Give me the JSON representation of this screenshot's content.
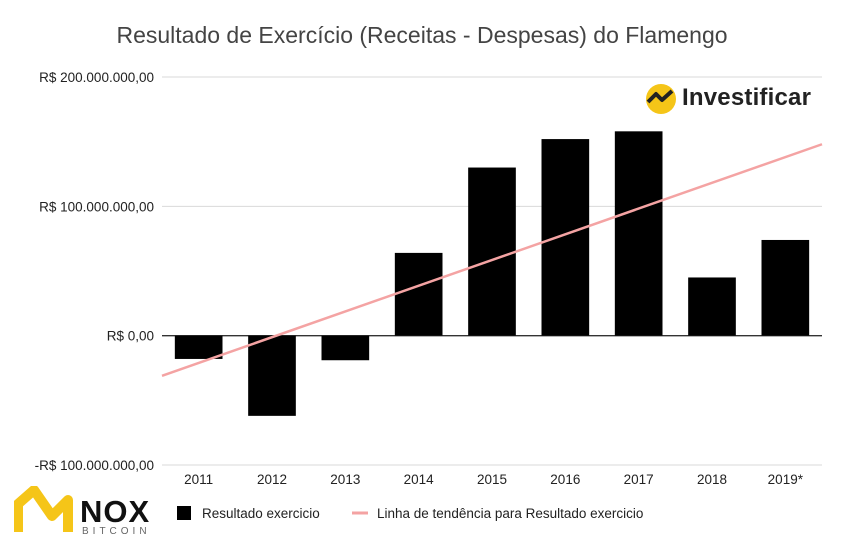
{
  "title": "Resultado de Exercício (Receitas - Despesas) do Flamengo",
  "chart_data": {
    "type": "bar",
    "title": "Resultado de Exercício (Receitas - Despesas) do Flamengo",
    "categories": [
      "2011",
      "2012",
      "2013",
      "2014",
      "2015",
      "2016",
      "2017",
      "2018",
      "2019*"
    ],
    "series": [
      {
        "name": "Resultado exercicio",
        "color": "#000000",
        "values": [
          -18000000,
          -62000000,
          -19000000,
          64000000,
          130000000,
          152000000,
          158000000,
          45000000,
          74000000
        ]
      }
    ],
    "trendline": {
      "name": "Linha de tendência para Resultado exercicio",
      "color": "#f4a3a3",
      "start_value": -31000000,
      "end_value": 148000000
    },
    "ylim": [
      -100000000,
      200000000
    ],
    "yticks": [
      200000000,
      100000000,
      0,
      -100000000
    ],
    "ytick_labels": [
      "R$ 200.000.000,00",
      "R$ 100.000.000,00",
      "R$ 0,00",
      "-R$ 100.000.000,00"
    ],
    "legend": [
      "Resultado exercicio",
      "Linha de tendência para Resultado exercicio"
    ],
    "legend_position": "bottom",
    "grid": true
  },
  "brand": {
    "name": "Investificar",
    "icon": "investificar-logo-icon"
  },
  "watermark": {
    "name": "NOX",
    "sub": "BITCOIN",
    "icon": "nox-logo-icon",
    "color": "#f5c518"
  }
}
